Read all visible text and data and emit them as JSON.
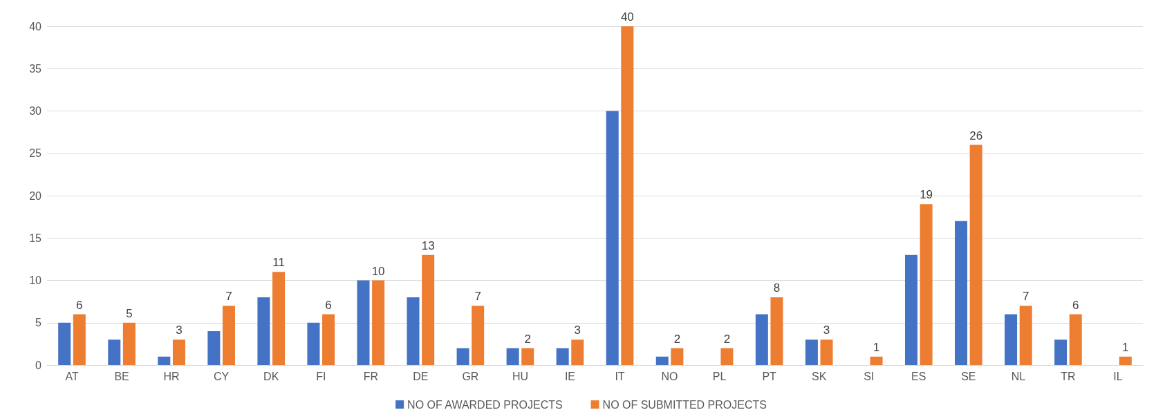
{
  "chart_data": {
    "type": "bar",
    "categories": [
      "AT",
      "BE",
      "HR",
      "CY",
      "DK",
      "FI",
      "FR",
      "DE",
      "GR",
      "HU",
      "IE",
      "IT",
      "NO",
      "PL",
      "PT",
      "SK",
      "SI",
      "ES",
      "SE",
      "NL",
      "TR",
      "IL"
    ],
    "series": [
      {
        "name": "NO OF AWARDED PROJECTS",
        "color": "#4472c4",
        "values": [
          5,
          3,
          1,
          4,
          8,
          5,
          10,
          8,
          2,
          2,
          2,
          30,
          1,
          null,
          6,
          3,
          null,
          13,
          17,
          6,
          3,
          null
        ]
      },
      {
        "name": "NO OF SUBMITTED PROJECTS",
        "color": "#ed7d31",
        "values": [
          6,
          5,
          3,
          7,
          11,
          6,
          10,
          13,
          7,
          2,
          3,
          40,
          2,
          2,
          8,
          3,
          1,
          19,
          26,
          7,
          6,
          1
        ],
        "value_labels": [
          "6",
          "5",
          "3",
          "7",
          "11",
          "6",
          "10",
          "13",
          "7",
          "2",
          "3",
          "40",
          "2",
          "2",
          "8",
          "3",
          "1",
          "19",
          "26",
          "7",
          "6",
          "1"
        ]
      }
    ],
    "ylim": [
      0,
      40
    ],
    "yticks": [
      0,
      5,
      10,
      15,
      20,
      25,
      30,
      35,
      40
    ],
    "grid": "y",
    "legend": "bottom"
  }
}
